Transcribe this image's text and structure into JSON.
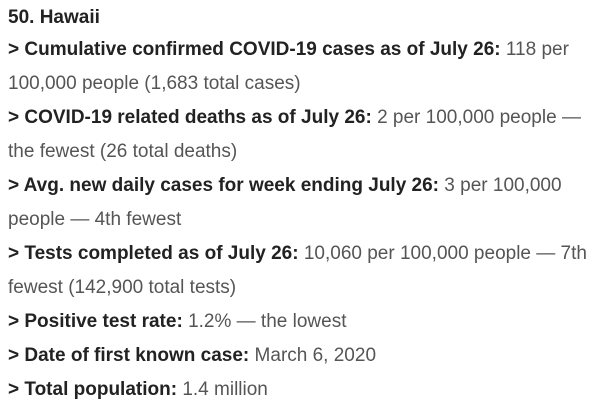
{
  "heading": "50. Hawaii",
  "facts": [
    {
      "label": "> Cumulative confirmed COVID-19 cases as of July 26:",
      "value": "118 per 100,000 people (1,683 total cases)"
    },
    {
      "label": "> COVID-19 related deaths as of July 26:",
      "value": "2 per 100,000 people — the fewest (26 total deaths)"
    },
    {
      "label": "> Avg. new daily cases for week ending July 26:",
      "value": "3 per 100,000 people — 4th fewest"
    },
    {
      "label": "> Tests completed as of July 26:",
      "value": "10,060 per 100,000 people — 7th fewest (142,900 total tests)"
    },
    {
      "label": "> Positive test rate:",
      "value": "1.2% — the lowest"
    },
    {
      "label": "> Date of first known case:",
      "value": "March 6, 2020"
    },
    {
      "label": "> Total population:",
      "value": "1.4 million"
    }
  ]
}
